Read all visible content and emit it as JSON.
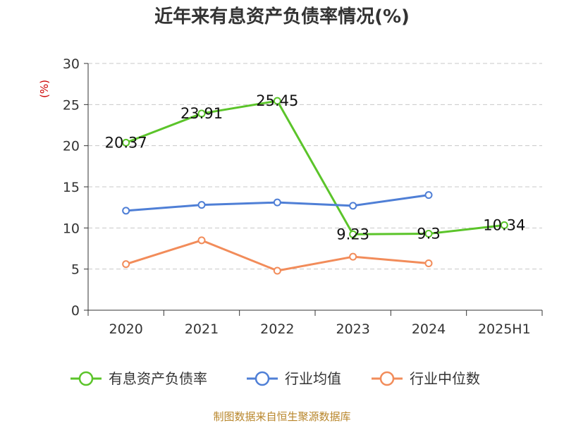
{
  "chart_data": {
    "type": "line",
    "title": "近年来有息资产负债率情况(%)",
    "ylabel": "(%)",
    "categories": [
      "2020",
      "2021",
      "2022",
      "2023",
      "2024",
      "2025H1"
    ],
    "yticks": [
      0,
      5,
      10,
      15,
      20,
      25,
      30
    ],
    "ylim": [
      0,
      30
    ],
    "grid": true,
    "legend_position": "bottom",
    "series": [
      {
        "name": "有息资产负债率",
        "color": "#5bc42a",
        "values": [
          20.37,
          23.91,
          25.45,
          9.23,
          9.3,
          10.34
        ],
        "labels": [
          "20.37",
          "23.91",
          "25.45",
          "9.23",
          "9.3",
          "10.34"
        ]
      },
      {
        "name": "行业均值",
        "color": "#4f7fd6",
        "values": [
          12.1,
          12.8,
          13.1,
          12.7,
          14.0,
          null
        ]
      },
      {
        "name": "行业中位数",
        "color": "#f28c5a",
        "values": [
          5.6,
          8.5,
          4.8,
          6.5,
          5.7,
          null
        ]
      }
    ]
  },
  "source": "制图数据来自恒生聚源数据库"
}
